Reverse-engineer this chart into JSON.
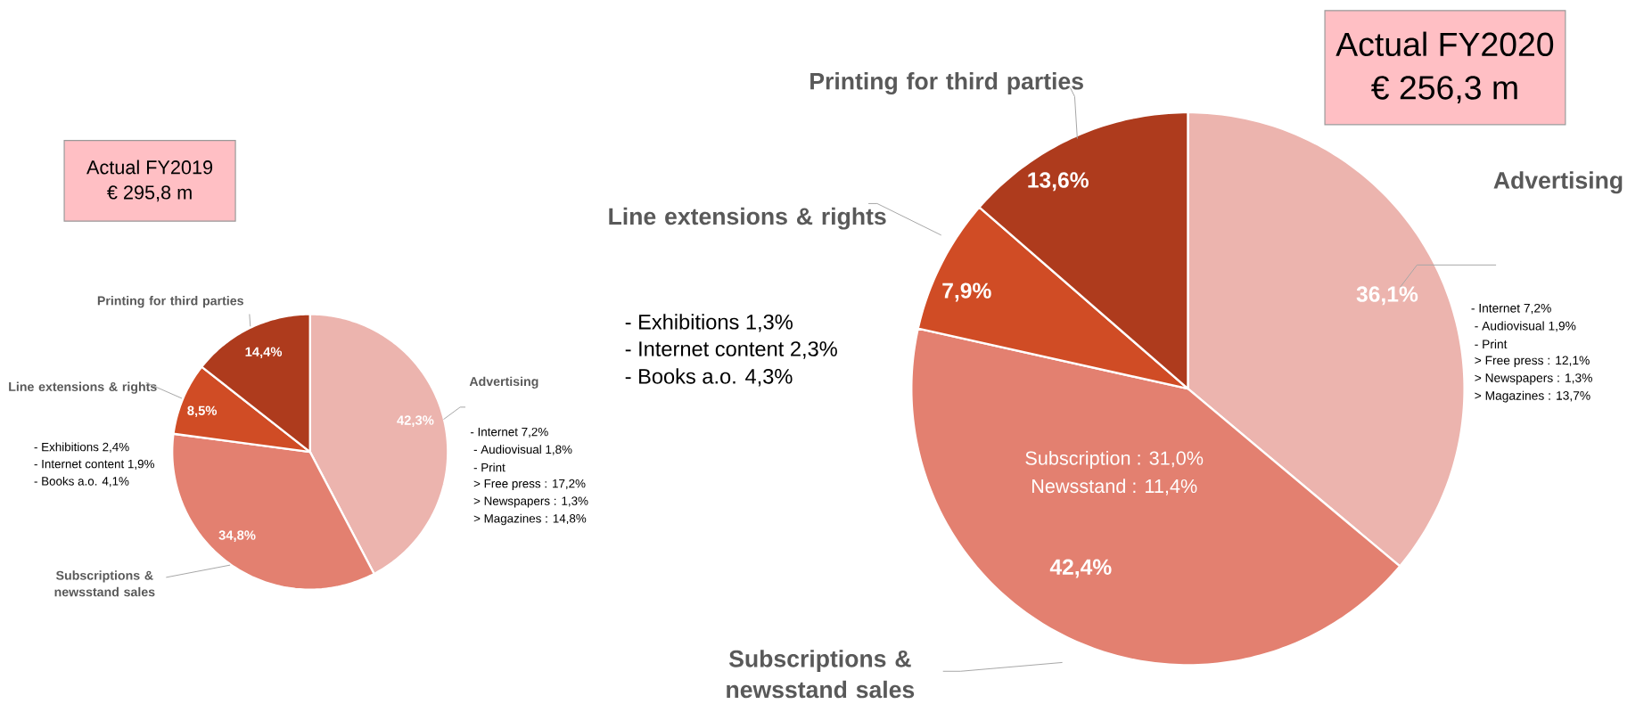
{
  "chart_data": [
    {
      "type": "pie",
      "title": "Actual FY2019",
      "subtitle": "€ 295,8 m",
      "categories": [
        "Advertising",
        "Subscriptions & newsstand sales",
        "Line extensions & rights",
        "Printing for third parties"
      ],
      "values": [
        42.3,
        34.8,
        8.5,
        14.4
      ],
      "colors": [
        "#ecb4ae",
        "#e38070",
        "#d04c25",
        "#ae3b1d"
      ],
      "value_labels": [
        "42,3%",
        "34,8%",
        "8,5%",
        "14,4%"
      ],
      "annotations": [
        "- Internet 7,2%",
        " - Audiovisual 1,8%",
        " - Print",
        "   > Free press : 17,2%",
        "   > Newspapers : 1,3%",
        "   > Magazines : 14,8%",
        "- Exhibitions 2,4%",
        "- Internet content  1,9%",
        "- Books a.o. 4,1%"
      ]
    },
    {
      "type": "pie",
      "title": "Actual FY2020",
      "subtitle": "€ 256,3 m",
      "categories": [
        "Advertising",
        "Subscriptions & newsstand sales",
        "Line extensions & rights",
        "Printing for third parties"
      ],
      "values": [
        36.1,
        42.4,
        7.9,
        13.6
      ],
      "colors": [
        "#ecb4ae",
        "#e38070",
        "#d04c25",
        "#ae3b1d"
      ],
      "value_labels": [
        "36,1%",
        "42,4%",
        "7,9%",
        "13,6%"
      ],
      "annotations": [
        "- Internet 7,2%",
        " - Audiovisual 1,9%",
        " - Print",
        "   > Free press : 12,1%",
        "   > Newspapers : 1,3%",
        "   > Magazines : 13,7%",
        "- Exhibitions 1,3%",
        "- Internet content  2,3%",
        "- Books a.o. 4,3%",
        "Subscription : 31,0%",
        "Newsstand : 11,4%"
      ]
    }
  ]
}
